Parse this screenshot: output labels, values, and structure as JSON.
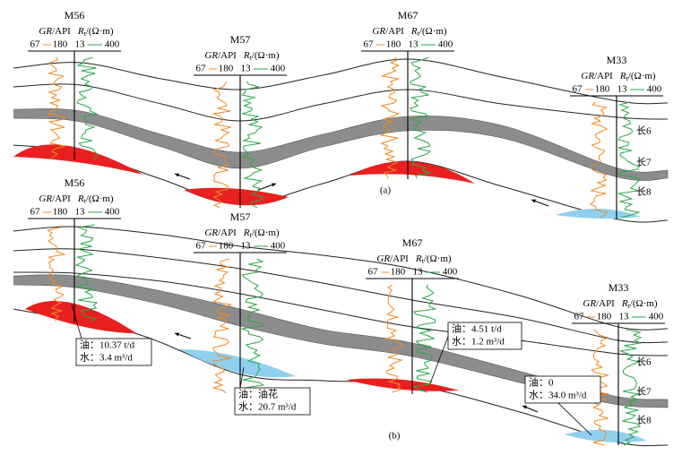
{
  "log_header": {
    "gr": "GR",
    "gr_unit": "/API",
    "rt": "R",
    "rt_sub": "t",
    "rt_unit": "/(Ω·m)",
    "scale": [
      "67",
      "180",
      "13",
      "400"
    ]
  },
  "panels": [
    {
      "label": "(a)",
      "wells": [
        "M56",
        "M57",
        "M67",
        "M33"
      ],
      "layers": [
        "长6",
        "长7",
        "长8"
      ]
    },
    {
      "label": "(b)",
      "wells": [
        "M56",
        "M57",
        "M67",
        "M33"
      ],
      "layers": [
        "长6",
        "长7",
        "长8"
      ],
      "annotations": [
        {
          "oil": "油：10.37 t/d",
          "water": "水：3.4 m³/d"
        },
        {
          "oil": "油：油花",
          "water": "水：20.7 m³/d"
        },
        {
          "oil": "油：4.51 t/d",
          "water": "水：1.2 m³/d"
        },
        {
          "oil": "油：0",
          "water": "水：34.0 m³/d"
        }
      ]
    }
  ]
}
